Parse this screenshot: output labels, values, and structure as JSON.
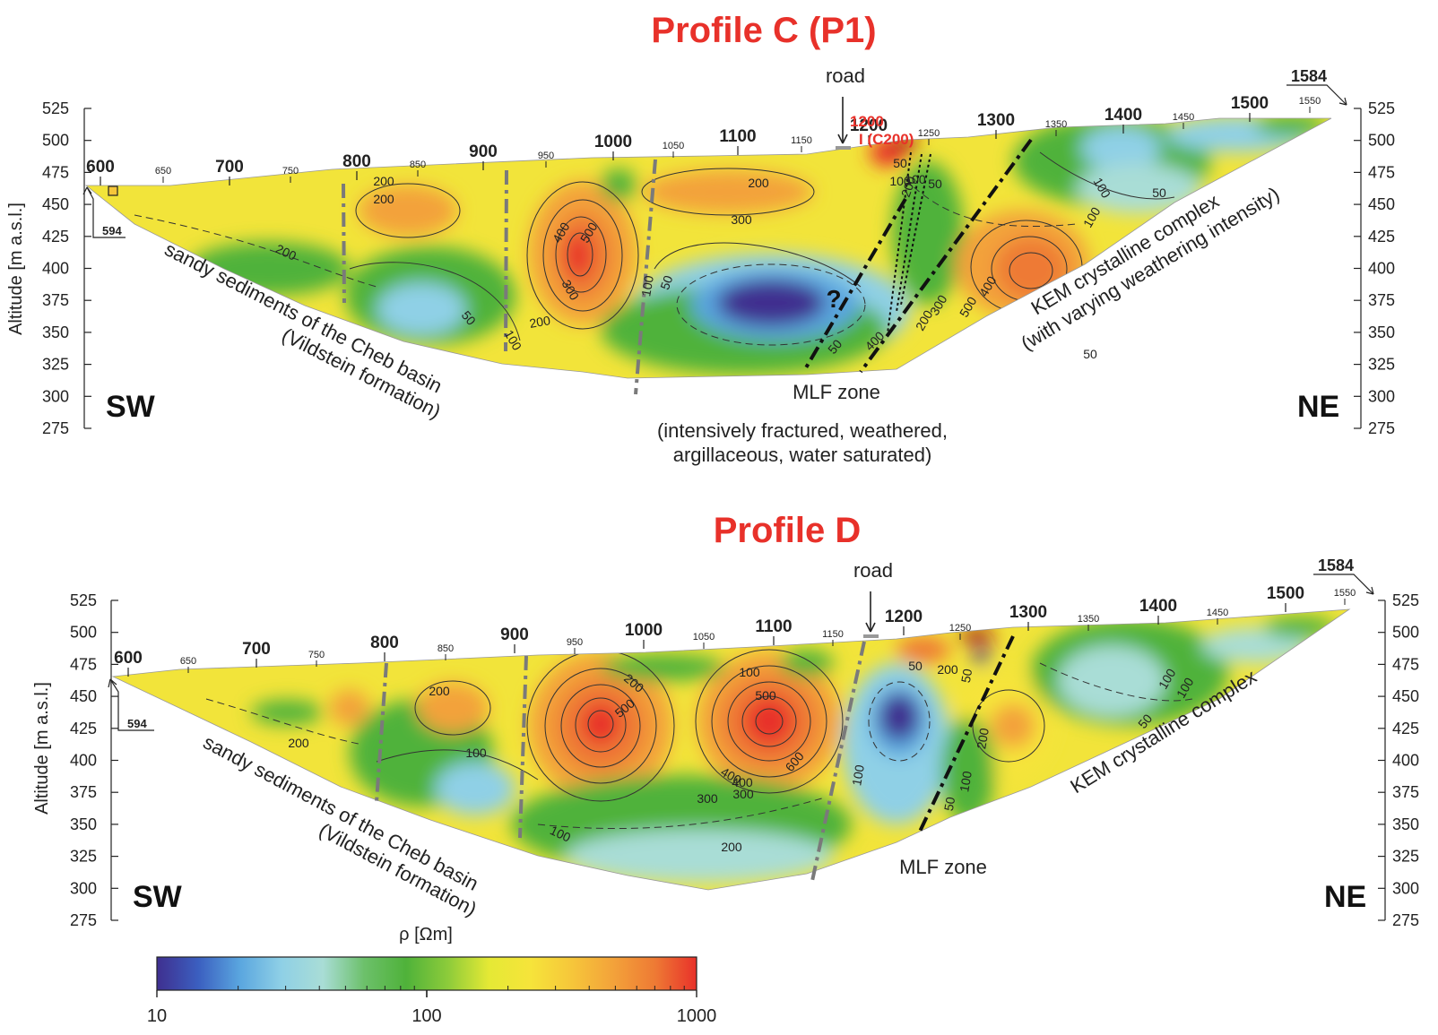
{
  "colors": {
    "title": "#e8312a",
    "low": "#3f2f8f",
    "mid": "#4fb23a",
    "high": "#e8312a",
    "fault_gray": "#7a7a7a",
    "fault_black": "#111111"
  },
  "altitude_ticks": [
    "525",
    "500",
    "475",
    "450",
    "425",
    "400",
    "375",
    "350",
    "325",
    "300",
    "275"
  ],
  "profiles": [
    {
      "title": "Profile C (P1)",
      "axis_title": "Altitude [m a.s.l.]",
      "major_distances": [
        "600",
        "700",
        "800",
        "900",
        "1000",
        "1100",
        "1200",
        "1300",
        "1400",
        "1500"
      ],
      "minor_distances": [
        "650",
        "750",
        "850",
        "950",
        "1050",
        "1150",
        "1250",
        "1350",
        "1450",
        "1550"
      ],
      "start_label": "594",
      "end_label": "1584",
      "road_label": "road",
      "red_label_1200": "1200",
      "red_label_c200": "I (C200)",
      "sw": "SW",
      "ne": "NE",
      "left_annotation_1": "sandy sediments of the Cheb basin",
      "left_annotation_2": "(Vildstein formation)",
      "right_annotation_1": "KEM crystalline complex",
      "right_annotation_2": "(with varying weathering intensity)",
      "mlf_zone": "MLF zone",
      "mlf_desc_1": "(intensively fractured, weathered,",
      "mlf_desc_2": "argillaceous, water saturated)",
      "question_mark": "?",
      "contour_labels": [
        "200",
        "200",
        "200",
        "200",
        "300",
        "400",
        "500",
        "300",
        "200",
        "100",
        "50",
        "50",
        "100",
        "100",
        "50",
        "200",
        "100",
        "50",
        "50",
        "50",
        "100",
        "400",
        "300",
        "500",
        "400",
        "200",
        "50",
        "100"
      ]
    },
    {
      "title": "Profile D",
      "axis_title": "Altitude [m a.s.l.]",
      "major_distances": [
        "600",
        "700",
        "800",
        "900",
        "1000",
        "1100",
        "1200",
        "1300",
        "1400",
        "1500"
      ],
      "minor_distances": [
        "650",
        "750",
        "850",
        "950",
        "1050",
        "1150",
        "1250",
        "1350",
        "1450",
        "1550"
      ],
      "start_label": "594",
      "end_label": "1584",
      "road_label": "road",
      "sw": "SW",
      "ne": "NE",
      "left_annotation_1": "sandy sediments of the Cheb basin",
      "left_annotation_2": "(Vildstein formation)",
      "right_annotation_1": "KEM crystalline complex",
      "mlf_zone": "MLF zone",
      "contour_labels": [
        "200",
        "100",
        "200",
        "200",
        "500",
        "400",
        "300",
        "100",
        "500",
        "400",
        "600",
        "300",
        "200",
        "100",
        "50",
        "200",
        "100",
        "50",
        "50",
        "100",
        "100",
        "200",
        "50",
        "100"
      ]
    }
  ],
  "colorbar": {
    "label": "ρ [Ωm]",
    "tick_labels": [
      "10",
      "100",
      "1000"
    ],
    "stops": [
      "#3f2f8f",
      "#3b5fc0",
      "#5aa6df",
      "#8fd0e6",
      "#a9ddd6",
      "#6cc06a",
      "#4fb23a",
      "#8ccb3a",
      "#e5e935",
      "#f6e43a",
      "#f6c63a",
      "#f3a23a",
      "#ee7a34",
      "#e8312a"
    ]
  }
}
